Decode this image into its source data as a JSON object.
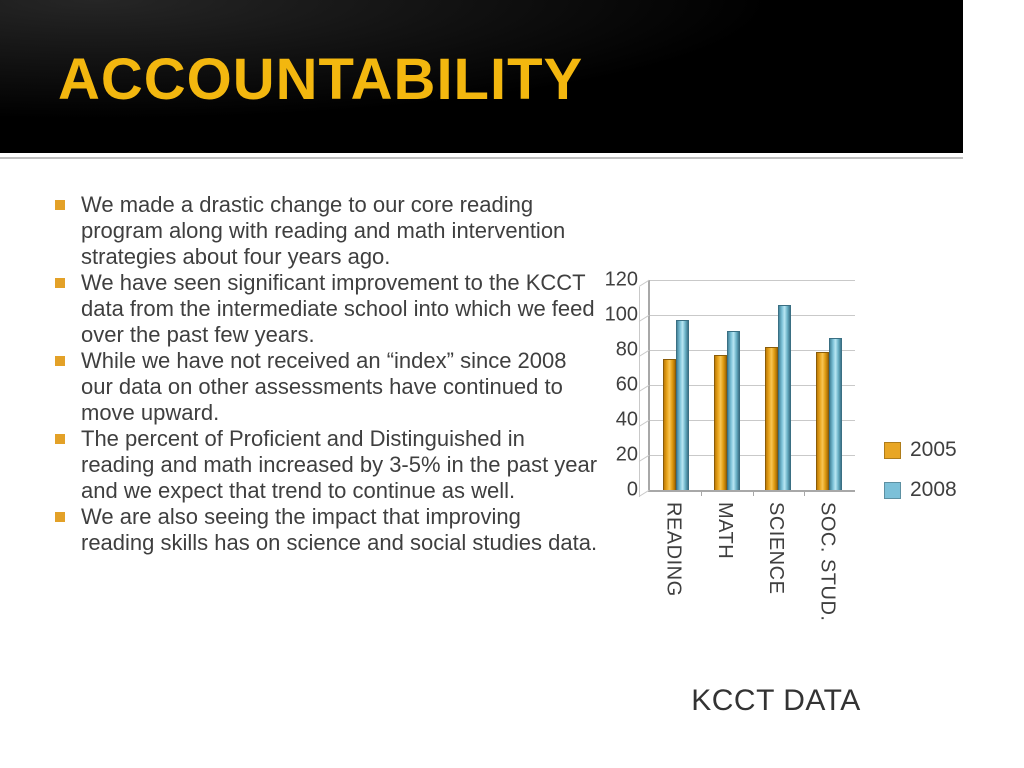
{
  "slide": {
    "title": "ACCOUNTABILITY"
  },
  "bullets": {
    "items": [
      "We made a drastic change to our core reading program along with reading and math intervention strategies about four years ago.",
      "We have seen significant improvement to the KCCT data from the intermediate school into which we feed over the past few years.",
      "While we have not received an “index” since  2008 our data on other assessments have continued to move upward.",
      "The percent of Proficient and Distinguished in reading and math increased by 3-5% in the past year and we expect that trend to continue as well.",
      "We are also seeing the impact that improving reading skills has on science and social studies data."
    ]
  },
  "chart_data": {
    "type": "bar",
    "title": "KCCT DATA",
    "categories": [
      "READING",
      "MATH",
      "SCIENCE",
      "SOC. STUD."
    ],
    "series": [
      {
        "name": "2005",
        "color": "#E8A625",
        "values": [
          75,
          77,
          82,
          79
        ]
      },
      {
        "name": "2008",
        "color": "#7CC0D8",
        "values": [
          97,
          91,
          106,
          87
        ]
      }
    ],
    "ylim": [
      0,
      120
    ],
    "yticks": [
      0,
      20,
      40,
      60,
      80,
      100,
      120
    ],
    "grid": true,
    "legend_position": "right"
  },
  "colors": {
    "title_text": "#F3B70F",
    "bullet_square": "#E3A128",
    "body_text": "#3F3F3F",
    "header_background": "#000000",
    "gridline": "#C9C9C9"
  }
}
